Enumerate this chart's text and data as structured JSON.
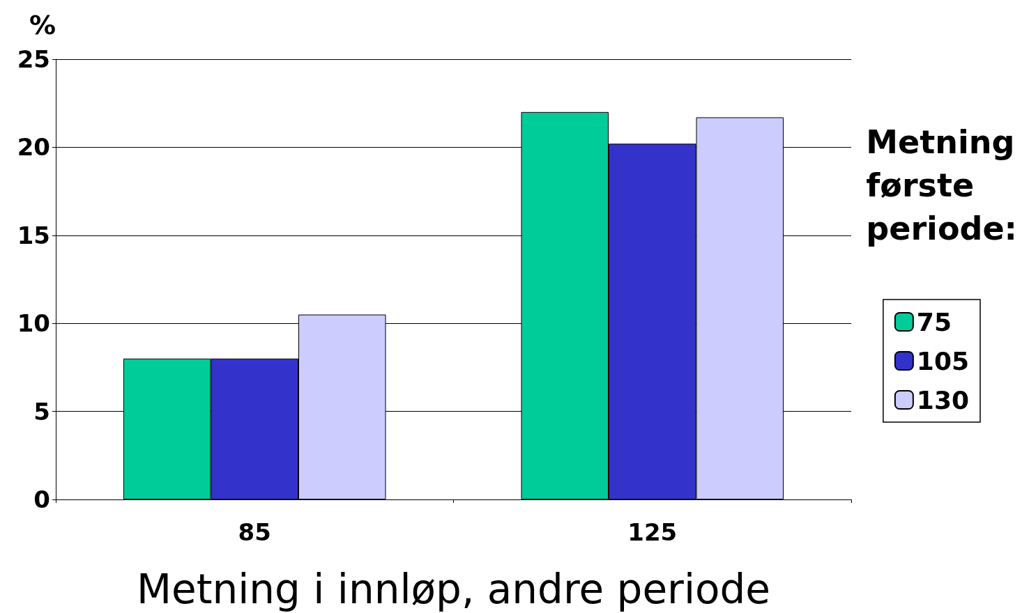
{
  "chart_data": {
    "type": "bar",
    "ylabel": "%",
    "xlabel": "Metning i innløp, andre periode",
    "legend_title": "Metning\nførste\nperiode:",
    "categories": [
      "85",
      "125"
    ],
    "series": [
      {
        "name": "75",
        "color": "#00cc99",
        "values": [
          8,
          22
        ]
      },
      {
        "name": "105",
        "color": "#3333cc",
        "values": [
          8,
          20.2
        ]
      },
      {
        "name": "130",
        "color": "#ccccff",
        "values": [
          10.5,
          21.7
        ]
      }
    ],
    "ylim": [
      0,
      25
    ],
    "yticks": [
      0,
      5,
      10,
      15,
      20,
      25
    ],
    "grid": "y",
    "legend": "right"
  }
}
